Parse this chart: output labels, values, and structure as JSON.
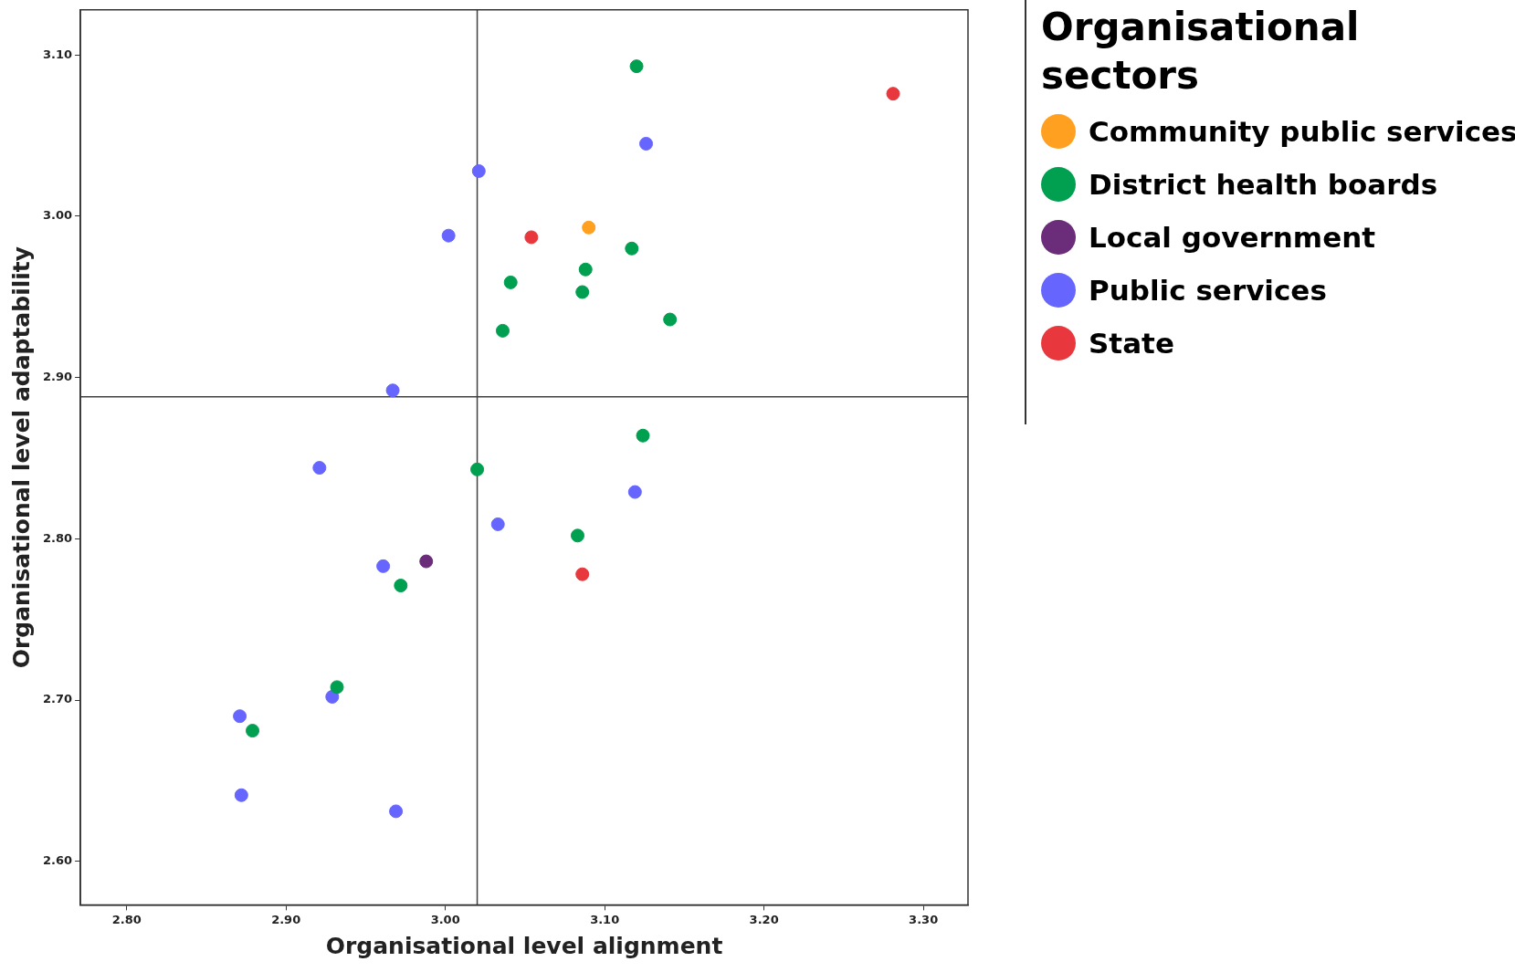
{
  "chart_data": {
    "type": "scatter",
    "xlabel": "Organisational level alignment",
    "ylabel": "Organisational level adaptability",
    "legend_title": "Organisational sectors",
    "legend": "right",
    "grid": false,
    "marker": "circle",
    "xlim": [
      2.771,
      3.328
    ],
    "xticks": [
      {
        "value": 2.8,
        "label": "2.80"
      },
      {
        "value": 2.9,
        "label": "2.90"
      },
      {
        "value": 3.0,
        "label": "3.00"
      },
      {
        "value": 3.1,
        "label": "3.10"
      },
      {
        "value": 3.2,
        "label": "3.20"
      },
      {
        "value": 3.3,
        "label": "3.30"
      }
    ],
    "ylim": [
      2.573,
      3.128
    ],
    "yticks": [
      {
        "value": 2.6,
        "label": "2.60"
      },
      {
        "value": 2.7,
        "label": "2.70"
      },
      {
        "value": 2.8,
        "label": "2.80"
      },
      {
        "value": 2.9,
        "label": "2.90"
      },
      {
        "value": 3.0,
        "label": "3.00"
      },
      {
        "value": 3.1,
        "label": "3.10"
      }
    ],
    "ref_lines": [
      {
        "axis": "x",
        "value": 3.02,
        "color": "#404040"
      },
      {
        "axis": "y",
        "value": 2.888,
        "color": "#404040"
      }
    ],
    "series": [
      {
        "name": "Community public services",
        "color": "#ffa020",
        "x": [
          3.09
        ],
        "values": [
          2.993
        ]
      },
      {
        "name": "District health boards",
        "color": "#00a050",
        "x": [
          3.12,
          3.117,
          3.088,
          3.086,
          3.041,
          3.141,
          3.036,
          3.124,
          3.02,
          3.083,
          2.972,
          2.932,
          2.879
        ],
        "values": [
          3.093,
          2.98,
          2.967,
          2.953,
          2.959,
          2.936,
          2.929,
          2.864,
          2.843,
          2.802,
          2.771,
          2.708,
          2.681
        ]
      },
      {
        "name": "Local government",
        "color": "#6b2c7a",
        "x": [
          2.988
        ],
        "values": [
          2.786
        ]
      },
      {
        "name": "Public services",
        "color": "#6666ff",
        "x": [
          3.126,
          3.021,
          3.002,
          2.967,
          2.921,
          3.119,
          3.033,
          2.961,
          2.929,
          2.871,
          2.872,
          2.969
        ],
        "values": [
          3.045,
          3.028,
          2.988,
          2.892,
          2.844,
          2.829,
          2.809,
          2.783,
          2.702,
          2.69,
          2.641,
          2.631
        ]
      },
      {
        "name": "State",
        "color": "#e8383d",
        "x": [
          3.281,
          3.054,
          3.086
        ],
        "values": [
          3.076,
          2.987,
          2.778
        ]
      }
    ]
  }
}
